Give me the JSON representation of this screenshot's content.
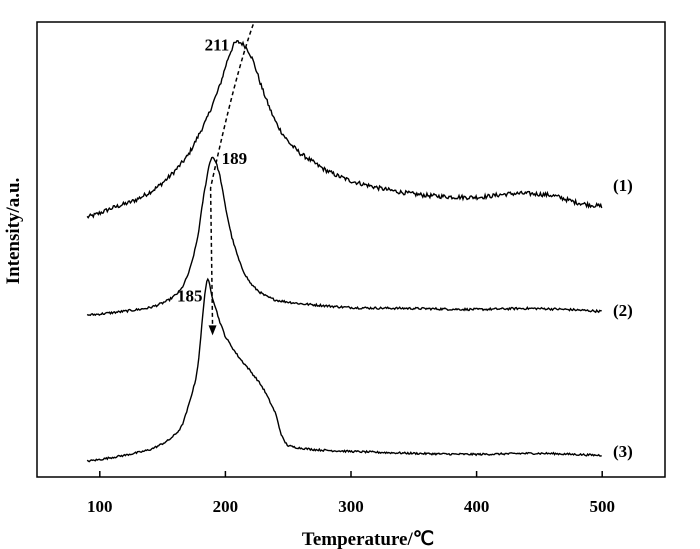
{
  "chart_data": {
    "type": "line",
    "title": "",
    "xlabel": "Temperature/℃",
    "ylabel": "Intensity/a.u.",
    "xlim": [
      50,
      550
    ],
    "x_ticks": [
      100,
      200,
      300,
      400,
      500
    ],
    "x_tick_labels": [
      "100",
      "200",
      "300",
      "400",
      "500"
    ],
    "y_ticks": [],
    "grid": false,
    "legend": "none",
    "line_color": "#000000",
    "series": [
      {
        "label": "(1)",
        "peak_label": "211",
        "x": [
          90,
          110,
          130,
          150,
          170,
          185,
          195,
          205,
          211,
          220,
          230,
          240,
          250,
          260,
          280,
          300,
          330,
          360,
          400,
          430,
          460,
          480,
          500
        ],
        "y": [
          0.0,
          0.05,
          0.1,
          0.19,
          0.34,
          0.54,
          0.72,
          0.93,
          0.97,
          0.9,
          0.7,
          0.53,
          0.42,
          0.35,
          0.26,
          0.2,
          0.15,
          0.12,
          0.11,
          0.13,
          0.12,
          0.08,
          0.06
        ]
      },
      {
        "label": "(2)",
        "peak_label": "189",
        "x": [
          90,
          120,
          140,
          155,
          165,
          172,
          178,
          183,
          189,
          195,
          200,
          205,
          212,
          220,
          230,
          240,
          260,
          300,
          350,
          400,
          440,
          470,
          500
        ],
        "y": [
          0.0,
          0.02,
          0.04,
          0.08,
          0.14,
          0.25,
          0.42,
          0.65,
          0.84,
          0.76,
          0.58,
          0.42,
          0.27,
          0.17,
          0.11,
          0.08,
          0.06,
          0.04,
          0.035,
          0.03,
          0.035,
          0.03,
          0.02
        ]
      },
      {
        "label": "(3)",
        "peak_label": "185",
        "x": [
          90,
          120,
          140,
          155,
          165,
          172,
          178,
          185,
          190,
          195,
          200,
          210,
          220,
          230,
          240,
          245,
          250,
          270,
          300,
          350,
          400,
          450,
          500
        ],
        "y": [
          0.0,
          0.03,
          0.06,
          0.11,
          0.18,
          0.32,
          0.5,
          0.93,
          0.85,
          0.74,
          0.65,
          0.55,
          0.47,
          0.38,
          0.25,
          0.13,
          0.08,
          0.06,
          0.05,
          0.04,
          0.035,
          0.04,
          0.03
        ]
      }
    ],
    "annotations": [
      {
        "type": "dashed-arrow",
        "text": "",
        "description": "dashed arrow through peaks 211 -> 189 -> 185"
      }
    ]
  }
}
